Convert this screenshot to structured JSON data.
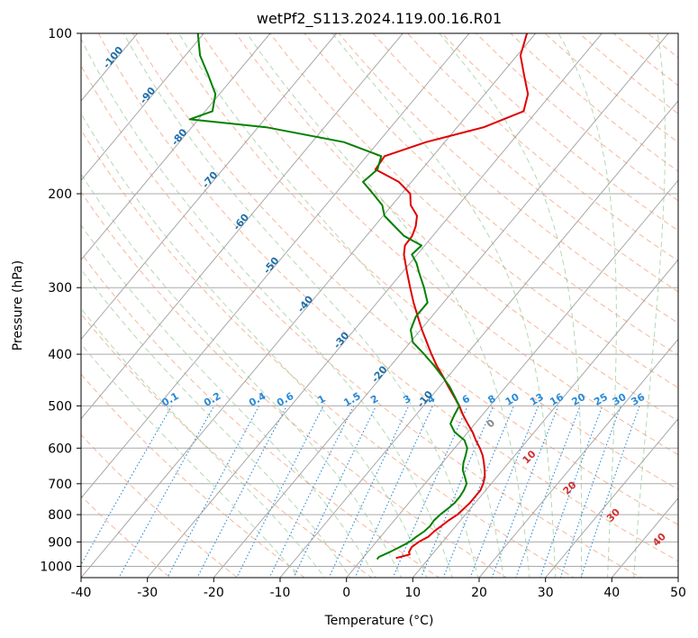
{
  "chart_data": {
    "type": "line",
    "title": "wetPf2_S113.2024.119.00.16.R01",
    "xlabel": "Temperature (°C)",
    "ylabel": "Pressure (hPa)",
    "xlim": [
      -40,
      50
    ],
    "ylim": [
      1050,
      100
    ],
    "y_scale": "log",
    "grid": true,
    "skew": "skew-T log-p",
    "x_ticks": [
      -40,
      -30,
      -20,
      -10,
      0,
      10,
      20,
      30,
      40,
      50
    ],
    "y_ticks": [
      100,
      200,
      300,
      400,
      500,
      600,
      700,
      800,
      900,
      1000
    ],
    "series": [
      {
        "name": "",
        "role": "temperature",
        "color": "#e00000",
        "pressure": [
          965,
          950,
          940,
          920,
          900,
          880,
          860,
          840,
          820,
          800,
          780,
          760,
          740,
          720,
          700,
          680,
          660,
          640,
          620,
          600,
          580,
          560,
          540,
          520,
          500,
          480,
          460,
          440,
          420,
          400,
          380,
          360,
          340,
          320,
          300,
          280,
          260,
          250,
          240,
          230,
          220,
          210,
          200,
          190,
          180,
          170,
          160,
          150,
          140,
          130,
          120,
          110,
          100
        ],
        "values": [
          5.0,
          6.6,
          6.2,
          6.0,
          6.4,
          7.2,
          7.4,
          7.8,
          8.2,
          8.8,
          9.0,
          9.2,
          9.2,
          9.2,
          8.8,
          8.2,
          7.3,
          6.3,
          5.2,
          3.8,
          2.2,
          0.7,
          -1.1,
          -2.9,
          -4.6,
          -6.6,
          -8.7,
          -10.8,
          -13.1,
          -15.3,
          -17.5,
          -19.8,
          -22.1,
          -24.5,
          -26.9,
          -29.4,
          -32.0,
          -33.0,
          -33.1,
          -33.8,
          -34.9,
          -37.2,
          -38.7,
          -41.9,
          -47.0,
          -47.3,
          -42.8,
          -36.0,
          -32.0,
          -33.5,
          -36.4,
          -39.5,
          -41.3
        ]
      },
      {
        "name": "",
        "role": "dewpoint",
        "color": "#008000",
        "pressure": [
          970,
          960,
          950,
          940,
          920,
          900,
          880,
          860,
          840,
          820,
          800,
          780,
          760,
          740,
          720,
          700,
          680,
          660,
          640,
          620,
          600,
          580,
          560,
          540,
          520,
          500,
          480,
          460,
          440,
          420,
          400,
          380,
          360,
          340,
          320,
          300,
          280,
          270,
          260,
          250,
          240,
          230,
          220,
          210,
          200,
          190,
          180,
          170,
          160,
          150,
          145,
          140,
          130,
          120,
          110,
          100
        ],
        "values": [
          2.3,
          2.3,
          2.8,
          3.3,
          4.2,
          5.0,
          5.4,
          5.9,
          6.1,
          6.0,
          6.2,
          6.6,
          6.9,
          6.9,
          6.7,
          6.3,
          5.2,
          4.0,
          3.2,
          2.6,
          1.9,
          0.5,
          -2.0,
          -3.7,
          -4.2,
          -4.6,
          -6.5,
          -8.5,
          -10.9,
          -13.5,
          -16.4,
          -19.6,
          -21.5,
          -22.4,
          -22.4,
          -24.8,
          -27.6,
          -29.0,
          -30.8,
          -30.5,
          -34.3,
          -37.0,
          -39.8,
          -41.5,
          -44.3,
          -47.3,
          -46.7,
          -47.8,
          -55.2,
          -68.8,
          -81.3,
          -78.9,
          -80.6,
          -84.0,
          -87.8,
          -90.9
        ]
      }
    ],
    "adiabats": {
      "dry_adiabat_labels": [
        "-100",
        "-90",
        "-80",
        "-70",
        "-60",
        "-50",
        "-40",
        "-30",
        "-20",
        "-10"
      ],
      "mixing_ratio_labels": [
        "0.1",
        "0.2",
        "0.4",
        "0.6",
        "1",
        "1.5",
        "2",
        "3",
        "4",
        "6",
        "8",
        "10",
        "13",
        "16",
        "20",
        "25",
        "30",
        "36"
      ],
      "moist_adiabat_labels": [
        "0",
        "10",
        "20",
        "30",
        "40"
      ]
    },
    "colors": {
      "temperature": "#e00000",
      "dewpoint": "#008000",
      "dry_adiabat": "#f4a582",
      "moist_adiabat": "#80c080",
      "mixing_ratio": "#2a8ad8",
      "isotherm": "#999999",
      "isobar": "#aaaaaa",
      "label_blue": "#1f6fa8",
      "label_red": "#d03030",
      "label_mixing": "#2a8ad8"
    }
  }
}
